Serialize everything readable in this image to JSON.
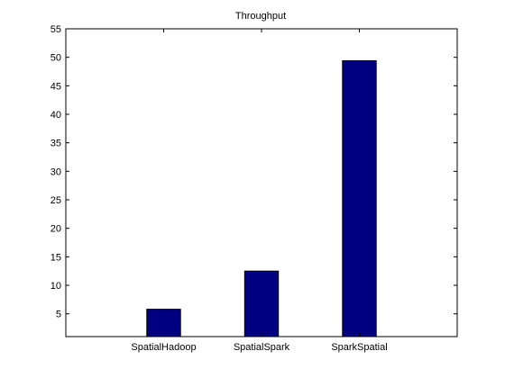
{
  "chart_data": {
    "type": "bar",
    "title": "Throughput",
    "xlabel": "",
    "ylabel": "",
    "categories": [
      "SpatialHadoop",
      "SpatialSpark",
      "SparkSpatial"
    ],
    "values": [
      5.8,
      12.5,
      49.4
    ],
    "ylim": [
      1,
      55
    ],
    "yticks": [
      5,
      10,
      15,
      20,
      25,
      30,
      35,
      40,
      45,
      50,
      55
    ],
    "grid": false,
    "legend": "none",
    "bar_color": "#000080",
    "axis_color": "#000000"
  }
}
